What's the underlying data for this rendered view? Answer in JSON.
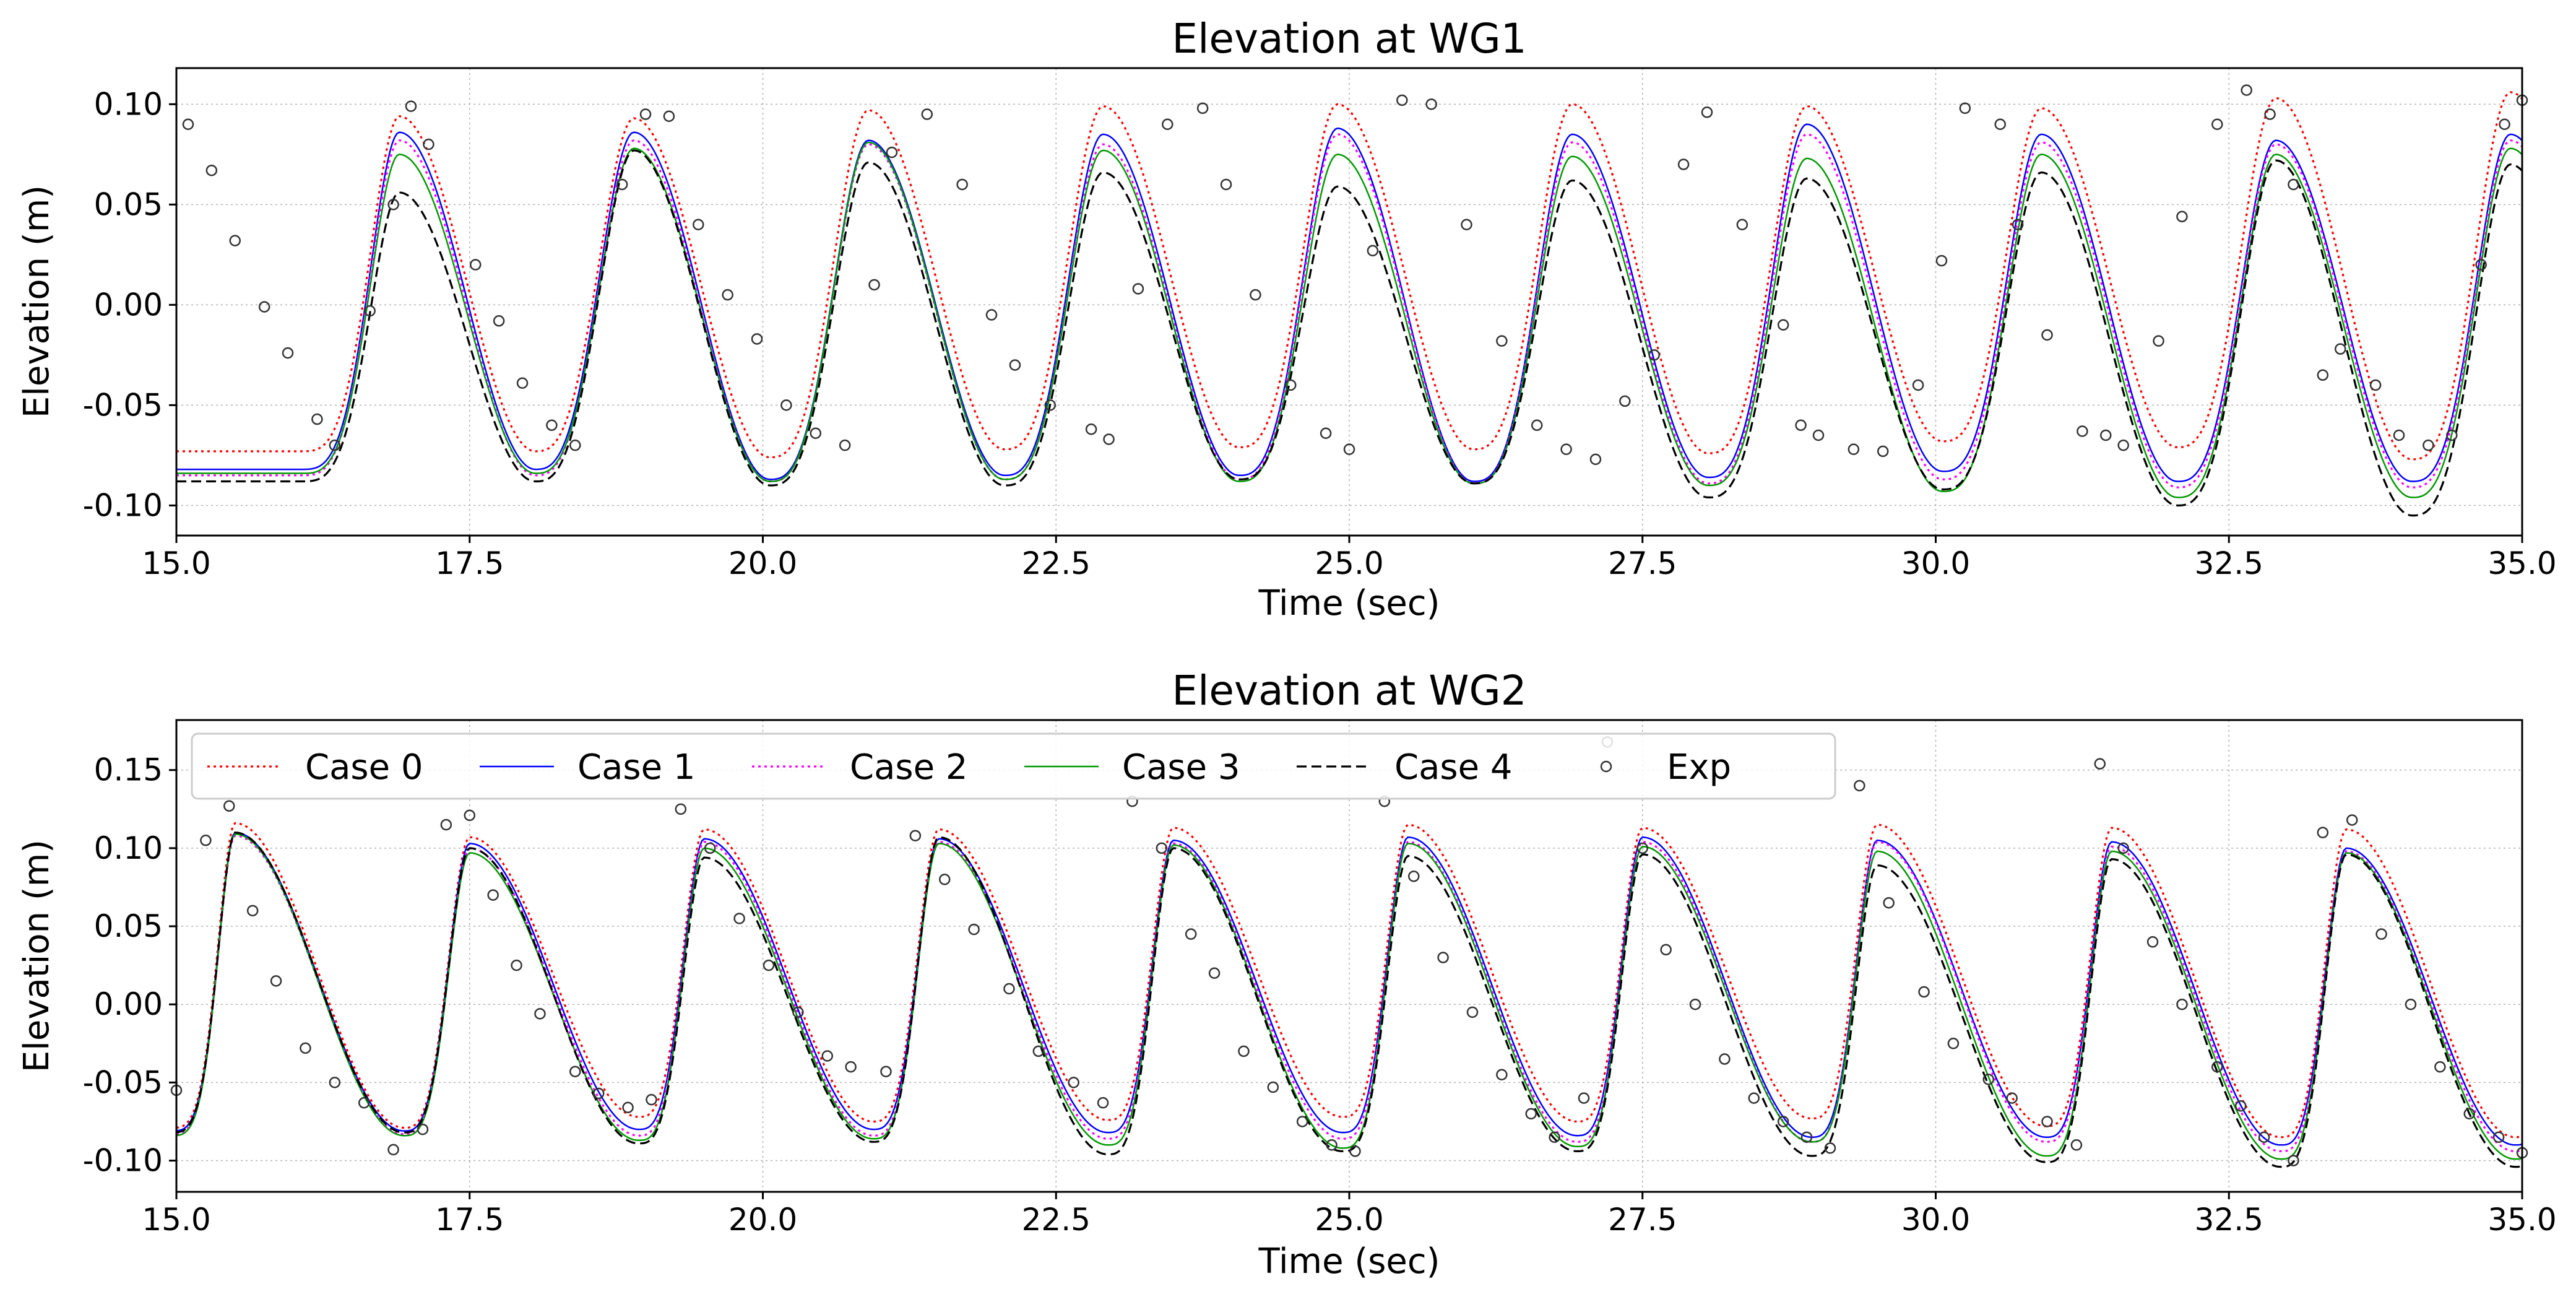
{
  "chart_data": [
    {
      "type": "line",
      "title": "Elevation at WG1",
      "xlabel": "Time (sec)",
      "ylabel": "Elevation (m)",
      "xlim": [
        15.0,
        35.0
      ],
      "ylim": [
        -0.115,
        0.118
      ],
      "xticks": [
        "15.0",
        "17.5",
        "20.0",
        "22.5",
        "25.0",
        "27.5",
        "30.0",
        "32.5",
        "35.0"
      ],
      "yticks": [
        "0.10",
        "0.05",
        "0.00",
        "-0.05",
        "-0.10"
      ],
      "grid": true,
      "legend": false,
      "wave": {
        "period": 2.0,
        "crest_times": [
          16.9,
          18.9,
          20.9,
          22.9,
          24.9,
          26.9,
          28.9,
          30.9,
          32.9,
          34.9
        ],
        "trough_phase": 0.58,
        "steepness": 0.68
      },
      "series": [
        {
          "name": "Case 0",
          "color": "#ff0000",
          "style": "dotted",
          "crests": [
            0.094,
            0.093,
            0.097,
            0.099,
            0.1,
            0.1,
            0.099,
            0.098,
            0.103,
            0.106
          ],
          "troughs": [
            -0.073,
            -0.076,
            -0.072,
            -0.071,
            -0.072,
            -0.074,
            -0.068,
            -0.071,
            -0.077
          ]
        },
        {
          "name": "Case 1",
          "color": "#0000ff",
          "style": "solid",
          "crests": [
            0.086,
            0.086,
            0.082,
            0.085,
            0.088,
            0.085,
            0.09,
            0.085,
            0.082,
            0.085
          ],
          "troughs": [
            -0.082,
            -0.087,
            -0.085,
            -0.085,
            -0.088,
            -0.086,
            -0.083,
            -0.088,
            -0.088
          ]
        },
        {
          "name": "Case 2",
          "color": "#ff00ff",
          "style": "dotted",
          "crests": [
            0.082,
            0.082,
            0.08,
            0.08,
            0.085,
            0.081,
            0.085,
            0.081,
            0.08,
            0.082
          ],
          "troughs": [
            -0.085,
            -0.088,
            -0.087,
            -0.087,
            -0.089,
            -0.089,
            -0.087,
            -0.091,
            -0.091
          ]
        },
        {
          "name": "Case 3",
          "color": "#009900",
          "style": "solid",
          "crests": [
            0.075,
            0.078,
            0.081,
            0.077,
            0.075,
            0.074,
            0.073,
            0.075,
            0.075,
            0.078
          ],
          "troughs": [
            -0.084,
            -0.088,
            -0.087,
            -0.088,
            -0.089,
            -0.09,
            -0.093,
            -0.096,
            -0.096
          ]
        },
        {
          "name": "Case 4",
          "color": "#000000",
          "style": "dashed",
          "crests": [
            0.056,
            0.077,
            0.071,
            0.066,
            0.059,
            0.062,
            0.063,
            0.066,
            0.072,
            0.07
          ],
          "troughs": [
            -0.088,
            -0.09,
            -0.09,
            -0.087,
            -0.089,
            -0.096,
            -0.092,
            -0.1,
            -0.105
          ]
        }
      ],
      "exp": {
        "name": "Exp",
        "x": [
          15.1,
          15.3,
          15.5,
          15.75,
          15.95,
          16.2,
          16.35,
          16.65,
          16.85,
          17.0,
          17.15,
          17.55,
          17.75,
          17.95,
          18.2,
          18.4,
          18.8,
          19.0,
          19.2,
          19.45,
          19.7,
          19.95,
          20.2,
          20.45,
          20.7,
          20.95,
          21.1,
          21.4,
          21.7,
          21.95,
          22.15,
          22.45,
          22.8,
          22.95,
          23.2,
          23.45,
          23.75,
          23.95,
          24.2,
          24.5,
          24.8,
          25.0,
          25.2,
          25.45,
          25.7,
          26.0,
          26.3,
          26.6,
          26.85,
          27.1,
          27.35,
          27.6,
          27.85,
          28.05,
          28.35,
          28.7,
          28.85,
          29.0,
          29.3,
          29.55,
          29.85,
          30.05,
          30.25,
          30.55,
          30.7,
          30.95,
          31.25,
          31.45,
          31.6,
          31.9,
          32.1,
          32.4,
          32.65,
          32.85,
          33.05,
          33.3,
          33.45,
          33.75,
          33.95,
          34.2,
          34.4,
          34.65,
          34.85,
          35.0
        ],
        "y": [
          0.09,
          0.067,
          0.032,
          -0.001,
          -0.024,
          -0.057,
          -0.07,
          -0.003,
          0.05,
          0.099,
          0.08,
          0.02,
          -0.008,
          -0.039,
          -0.06,
          -0.07,
          0.06,
          0.095,
          0.094,
          0.04,
          0.005,
          -0.017,
          -0.05,
          -0.064,
          -0.07,
          0.01,
          0.076,
          0.095,
          0.06,
          -0.005,
          -0.03,
          -0.05,
          -0.062,
          -0.067,
          0.008,
          0.09,
          0.098,
          0.06,
          0.005,
          -0.04,
          -0.064,
          -0.072,
          0.027,
          0.102,
          0.1,
          0.04,
          -0.018,
          -0.06,
          -0.072,
          -0.077,
          -0.048,
          -0.025,
          0.07,
          0.096,
          0.04,
          -0.01,
          -0.06,
          -0.065,
          -0.072,
          -0.073,
          -0.04,
          0.022,
          0.098,
          0.09,
          0.04,
          -0.015,
          -0.063,
          -0.065,
          -0.07,
          -0.018,
          0.044,
          0.09,
          0.107,
          0.095,
          0.06,
          -0.035,
          -0.022,
          -0.04,
          -0.065,
          -0.07,
          -0.065,
          0.02,
          0.09,
          0.102
        ]
      }
    },
    {
      "type": "line",
      "title": "Elevation at WG2",
      "xlabel": "Time (sec)",
      "ylabel": "Elevation (m)",
      "xlim": [
        15.0,
        35.0
      ],
      "ylim": [
        -0.12,
        0.182
      ],
      "xticks": [
        "15.0",
        "17.5",
        "20.0",
        "22.5",
        "25.0",
        "27.5",
        "30.0",
        "32.5",
        "35.0"
      ],
      "yticks": [
        "0.15",
        "0.10",
        "0.05",
        "0.00",
        "-0.05",
        "-0.10"
      ],
      "grid": true,
      "legend": {
        "placement": "top",
        "columns": 6
      },
      "wave": {
        "period": 2.0,
        "crest_times": [
          15.5,
          17.5,
          19.5,
          21.5,
          23.5,
          25.5,
          27.5,
          29.5,
          31.5,
          33.5
        ],
        "trough_phase": 0.72,
        "steepness": 0.92
      },
      "series": [
        {
          "name": "Case 0",
          "color": "#ff0000",
          "style": "dotted",
          "crests": [
            0.116,
            0.107,
            0.112,
            0.112,
            0.113,
            0.115,
            0.113,
            0.115,
            0.113,
            0.112
          ],
          "troughs": [
            -0.079,
            -0.072,
            -0.075,
            -0.074,
            -0.072,
            -0.075,
            -0.073,
            -0.078,
            -0.085
          ]
        },
        {
          "name": "Case 1",
          "color": "#0000ff",
          "style": "solid",
          "crests": [
            0.11,
            0.103,
            0.106,
            0.106,
            0.105,
            0.107,
            0.107,
            0.105,
            0.104,
            0.1
          ],
          "troughs": [
            -0.081,
            -0.08,
            -0.08,
            -0.082,
            -0.082,
            -0.084,
            -0.085,
            -0.085,
            -0.09
          ]
        },
        {
          "name": "Case 2",
          "color": "#ff00ff",
          "style": "dotted",
          "crests": [
            0.108,
            0.1,
            0.104,
            0.104,
            0.103,
            0.104,
            0.104,
            0.104,
            0.101,
            0.098
          ],
          "troughs": [
            -0.083,
            -0.084,
            -0.084,
            -0.086,
            -0.086,
            -0.088,
            -0.088,
            -0.088,
            -0.094
          ]
        },
        {
          "name": "Case 3",
          "color": "#009900",
          "style": "solid",
          "crests": [
            0.109,
            0.097,
            0.1,
            0.103,
            0.102,
            0.103,
            0.101,
            0.098,
            0.098,
            0.097
          ],
          "troughs": [
            -0.084,
            -0.087,
            -0.086,
            -0.09,
            -0.092,
            -0.091,
            -0.088,
            -0.097,
            -0.099
          ]
        },
        {
          "name": "Case 4",
          "color": "#000000",
          "style": "dashed",
          "crests": [
            0.11,
            0.1,
            0.094,
            0.107,
            0.1,
            0.095,
            0.096,
            0.089,
            0.093,
            0.096
          ],
          "troughs": [
            -0.082,
            -0.089,
            -0.088,
            -0.096,
            -0.094,
            -0.094,
            -0.097,
            -0.101,
            -0.104
          ]
        }
      ],
      "exp": {
        "name": "Exp",
        "x": [
          15.0,
          15.25,
          15.45,
          15.65,
          15.85,
          16.1,
          16.35,
          16.6,
          16.85,
          17.1,
          17.3,
          17.5,
          17.7,
          17.9,
          18.1,
          18.4,
          18.6,
          18.85,
          19.05,
          19.3,
          19.55,
          19.8,
          20.05,
          20.3,
          20.55,
          20.75,
          21.05,
          21.3,
          21.55,
          21.8,
          22.1,
          22.35,
          22.65,
          22.9,
          23.15,
          23.4,
          23.65,
          23.85,
          24.1,
          24.35,
          24.6,
          24.85,
          25.05,
          25.3,
          25.55,
          25.8,
          26.05,
          26.3,
          26.55,
          26.75,
          27.0,
          27.2,
          27.5,
          27.7,
          27.95,
          28.2,
          28.45,
          28.7,
          28.9,
          29.1,
          29.35,
          29.6,
          29.9,
          30.15,
          30.45,
          30.65,
          30.95,
          31.2,
          31.4,
          31.6,
          31.85,
          32.1,
          32.4,
          32.6,
          32.8,
          33.05,
          33.3,
          33.55,
          33.8,
          34.05,
          34.3,
          34.55,
          34.8,
          35.0
        ],
        "y": [
          -0.055,
          0.105,
          0.127,
          0.06,
          0.015,
          -0.028,
          -0.05,
          -0.063,
          -0.093,
          -0.08,
          0.115,
          0.121,
          0.07,
          0.025,
          -0.006,
          -0.043,
          -0.057,
          -0.066,
          -0.061,
          0.125,
          0.1,
          0.055,
          0.025,
          -0.005,
          -0.033,
          -0.04,
          -0.043,
          0.108,
          0.08,
          0.048,
          0.01,
          -0.03,
          -0.05,
          -0.063,
          0.13,
          0.1,
          0.045,
          0.02,
          -0.03,
          -0.053,
          -0.075,
          -0.09,
          -0.094,
          0.13,
          0.082,
          0.03,
          -0.005,
          -0.045,
          -0.07,
          -0.085,
          -0.06,
          0.168,
          0.1,
          0.035,
          0.0,
          -0.035,
          -0.06,
          -0.075,
          -0.085,
          -0.092,
          0.14,
          0.065,
          0.008,
          -0.025,
          -0.048,
          -0.06,
          -0.075,
          -0.09,
          0.154,
          0.1,
          0.04,
          0.0,
          -0.04,
          -0.065,
          -0.085,
          -0.1,
          0.11,
          0.118,
          0.045,
          0.0,
          -0.04,
          -0.07,
          -0.085,
          -0.095
        ]
      }
    }
  ]
}
